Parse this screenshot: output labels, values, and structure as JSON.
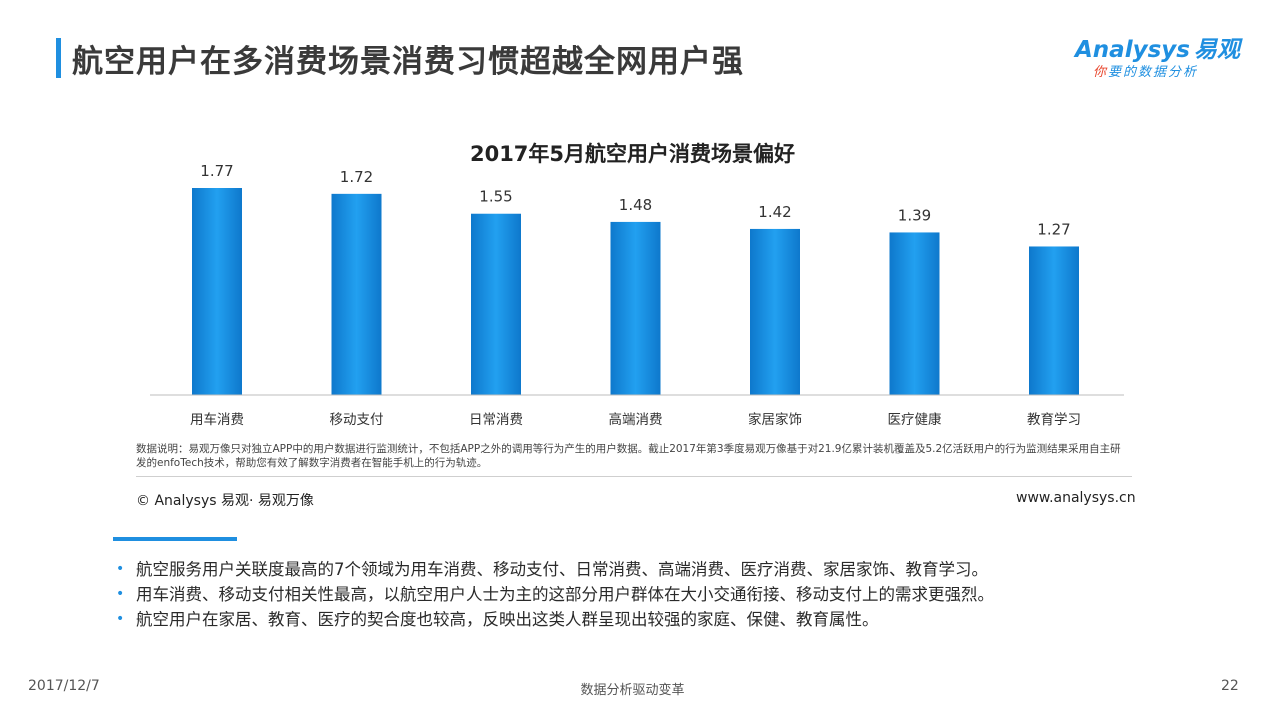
{
  "header": {
    "title": "航空用户在多消费场景消费习惯超越全网用户强",
    "logo_main": "Analysys",
    "logo_cn": "易观",
    "logo_tagline_first": "你",
    "logo_tagline_rest": "要的数据分析"
  },
  "chart_data": {
    "type": "bar",
    "title": "2017年5月航空用户消费场景偏好",
    "categories": [
      "用车消费",
      "移动支付",
      "日常消费",
      "高端消费",
      "家居家饰",
      "医疗健康",
      "教育学习"
    ],
    "values": [
      1.77,
      1.72,
      1.55,
      1.48,
      1.42,
      1.39,
      1.27
    ],
    "value_labels": [
      "1.77",
      "1.72",
      "1.55",
      "1.48",
      "1.42",
      "1.39",
      "1.27"
    ],
    "xlabel": "",
    "ylabel": "",
    "ylim": [
      0,
      1.8
    ],
    "grid": false,
    "bar_color": "#1a8ee0"
  },
  "note": "数据说明：易观万像只对独立APP中的用户数据进行监测统计，不包括APP之外的调用等行为产生的用户数据。截止2017年第3季度易观万像基于对21.9亿累计装机覆盖及5.2亿活跃用户的行为监测结果采用自主研发的enfoTech技术，帮助您有效了解数字消费者在智能手机上的行为轨迹。",
  "source": {
    "copyright": "© Analysys 易观· 易观万像",
    "website": "www.analysys.cn"
  },
  "bullets": [
    "航空服务用户关联度最高的7个领域为用车消费、移动支付、日常消费、高端消费、医疗消费、家居家饰、教育学习。",
    "用车消费、移动支付相关性最高，以航空用户人士为主的这部分用户群体在大小交通衔接、移动支付上的需求更强烈。",
    "航空用户在家居、教育、医疗的契合度也较高，反映出这类人群呈现出较强的家庭、保健、教育属性。"
  ],
  "bullet_glyph": "•",
  "footer": {
    "date": "2017/12/7",
    "center": "数据分析驱动变革",
    "page": "22"
  },
  "colors": {
    "accent": "#1f8fe0",
    "bar": "#1a8ee0"
  }
}
